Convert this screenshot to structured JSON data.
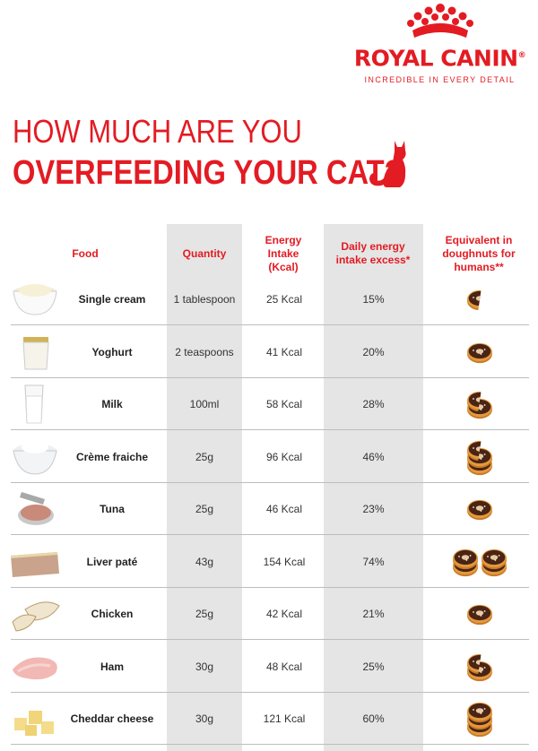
{
  "brand": {
    "name": "ROYAL CANIN",
    "trademark": "®",
    "tagline": "INCREDIBLE IN EVERY DETAIL",
    "color": "#e31b23"
  },
  "headline": {
    "line1": "HOW MUCH ARE YOU",
    "line2": "OVERFEEDING YOUR CAT?"
  },
  "table": {
    "headers": {
      "food": "Food",
      "quantity": "Quantity",
      "energy": "Energy Intake (Kcal)",
      "excess": "Daily energy intake excess*",
      "doughnuts": "Equivalent in doughnuts for humans**"
    },
    "rows": [
      {
        "food": "Single cream",
        "quantity": "1 tablespoon",
        "energy": "25 Kcal",
        "excess": "15%",
        "doughnuts": 0.5,
        "icon": "cream-bowl"
      },
      {
        "food": "Yoghurt",
        "quantity": "2 teaspoons",
        "energy": "41 Kcal",
        "excess": "20%",
        "doughnuts": 1,
        "icon": "yoghurt-pot"
      },
      {
        "food": "Milk",
        "quantity": "100ml",
        "energy": "58 Kcal",
        "excess": "28%",
        "doughnuts": 1.5,
        "icon": "milk-glass"
      },
      {
        "food": "Crème fraiche",
        "quantity": "25g",
        "energy": "96 Kcal",
        "excess": "46%",
        "doughnuts": 2.5,
        "icon": "creme-fraiche-bowl"
      },
      {
        "food": "Tuna",
        "quantity": "25g",
        "energy": "46 Kcal",
        "excess": "23%",
        "doughnuts": 1,
        "icon": "tuna-can"
      },
      {
        "food": "Liver paté",
        "quantity": "43g",
        "energy": "154 Kcal",
        "excess": "74%",
        "doughnuts": 4,
        "icon": "pate-slice"
      },
      {
        "food": "Chicken",
        "quantity": "25g",
        "energy": "42 Kcal",
        "excess": "21%",
        "doughnuts": 1,
        "icon": "chicken-slices"
      },
      {
        "food": "Ham",
        "quantity": "30g",
        "energy": "48 Kcal",
        "excess": "25%",
        "doughnuts": 1.5,
        "icon": "ham-slice"
      },
      {
        "food": "Cheddar cheese",
        "quantity": "30g",
        "energy": "121 Kcal",
        "excess": "60%",
        "doughnuts": 3,
        "icon": "cheese-cubes"
      }
    ]
  }
}
